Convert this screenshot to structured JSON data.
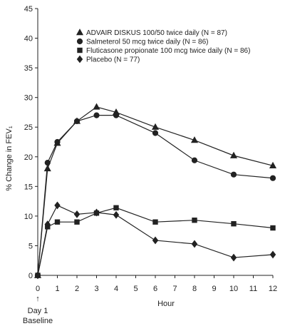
{
  "chart_data": {
    "type": "line",
    "ylabel": "% Change in FEV₁",
    "xlabel": "Hour",
    "xlim": [
      0,
      12
    ],
    "ylim": [
      0,
      45
    ],
    "x_ticks": [
      0,
      1,
      2,
      3,
      4,
      5,
      6,
      7,
      8,
      9,
      10,
      11,
      12
    ],
    "y_ticks": [
      0,
      5,
      10,
      15,
      20,
      25,
      30,
      35,
      40,
      45
    ],
    "baseline_annotation": {
      "arrow": "↑",
      "line1": "Day 1",
      "line2": "Baseline"
    },
    "legend_position": "top-right",
    "series": [
      {
        "name": "ADVAIR DISKUS 100/50 twice daily (N = 87)",
        "marker": "triangle",
        "x": [
          0,
          0.5,
          1,
          2,
          3,
          4,
          6,
          8,
          10,
          12
        ],
        "y": [
          0,
          18,
          22.3,
          26,
          28.4,
          27.5,
          25,
          22.8,
          20.2,
          18.5
        ]
      },
      {
        "name": "Salmeterol 50 mcg twice daily (N = 86)",
        "marker": "circle",
        "x": [
          0,
          0.5,
          1,
          2,
          3,
          4,
          6,
          8,
          10,
          12
        ],
        "y": [
          0,
          19,
          22.5,
          26,
          27,
          27,
          24,
          19.4,
          17,
          16.4
        ]
      },
      {
        "name": "Fluticasone propionate 100 mcg twice daily (N = 86)",
        "marker": "square",
        "x": [
          0,
          0.5,
          1,
          2,
          3,
          4,
          6,
          8,
          10,
          12
        ],
        "y": [
          0,
          8.2,
          9,
          9,
          10.5,
          11.4,
          9,
          9.3,
          8.7,
          8
        ]
      },
      {
        "name": "Placebo (N = 77)",
        "marker": "diamond",
        "x": [
          0,
          0.5,
          1,
          2,
          3,
          4,
          6,
          8,
          10,
          12
        ],
        "y": [
          0,
          8.6,
          11.8,
          10.3,
          10.6,
          10.2,
          5.9,
          5.3,
          3,
          3.5
        ]
      }
    ]
  }
}
